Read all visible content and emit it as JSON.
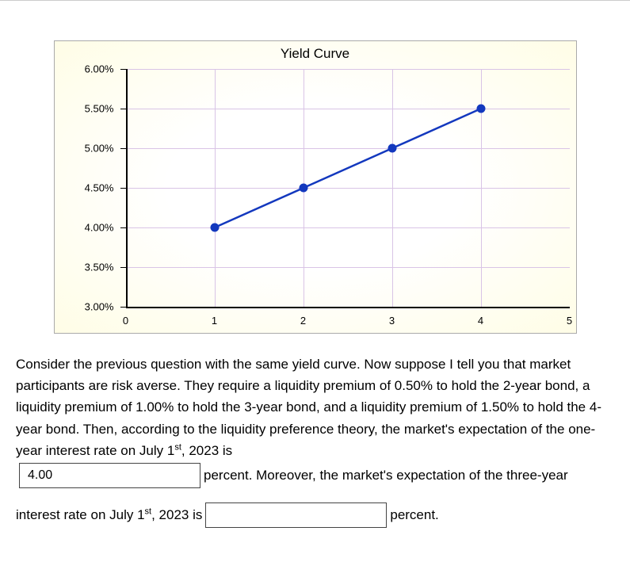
{
  "chart": {
    "type": "line",
    "title": "Yield Curve",
    "title_fontsize": 17,
    "background_gradient_center": "#ffffff",
    "background_gradient_edge": "#fffde6",
    "border_color": "#aaaaaa",
    "grid_color": "#d9c4e6",
    "axis_color": "#000000",
    "xlim": [
      0,
      5
    ],
    "ylim": [
      3.0,
      6.0
    ],
    "x_ticks": [
      0,
      1,
      2,
      3,
      4,
      5
    ],
    "y_ticks": [
      3.0,
      3.5,
      4.0,
      4.5,
      5.0,
      5.5,
      6.0
    ],
    "y_tick_labels": [
      "3.00%",
      "3.50%",
      "4.00%",
      "4.50%",
      "5.00%",
      "5.50%",
      "6.00%"
    ],
    "x_tick_labels": [
      "0",
      "1",
      "2",
      "3",
      "4",
      "5"
    ],
    "series": {
      "color": "#1338be",
      "line_width": 2.5,
      "marker_radius": 5,
      "marker_fill": "#1338be",
      "marker_stroke": "#1338be",
      "points": [
        {
          "x": 1,
          "y": 4.0
        },
        {
          "x": 2,
          "y": 4.5
        },
        {
          "x": 3,
          "y": 5.0
        },
        {
          "x": 4,
          "y": 5.5
        }
      ]
    },
    "tick_fontsize": 13
  },
  "question": {
    "body_part1": "Consider the previous question with the same yield curve. Now suppose I tell you that market participants are risk averse. They require a liquidity premium of 0.50% to hold the 2-year bond, a liquidity premium of 1.00% to hold the 3-year bond, and a liquidity premium of 1.50% to hold the 4-year bond. Then, according to the liquidity preference theory, the market's expectation of the one-year interest rate on July 1",
    "sup1": "st",
    "body_part2": ", 2023 is",
    "input1_value": "4.00",
    "body_part3": "percent. Moreover, the market's expectation of the three-year",
    "body_part4": "interest rate on July 1",
    "sup2": "st",
    "body_part5": ", 2023 is",
    "input2_value": "",
    "body_part6": "percent."
  }
}
